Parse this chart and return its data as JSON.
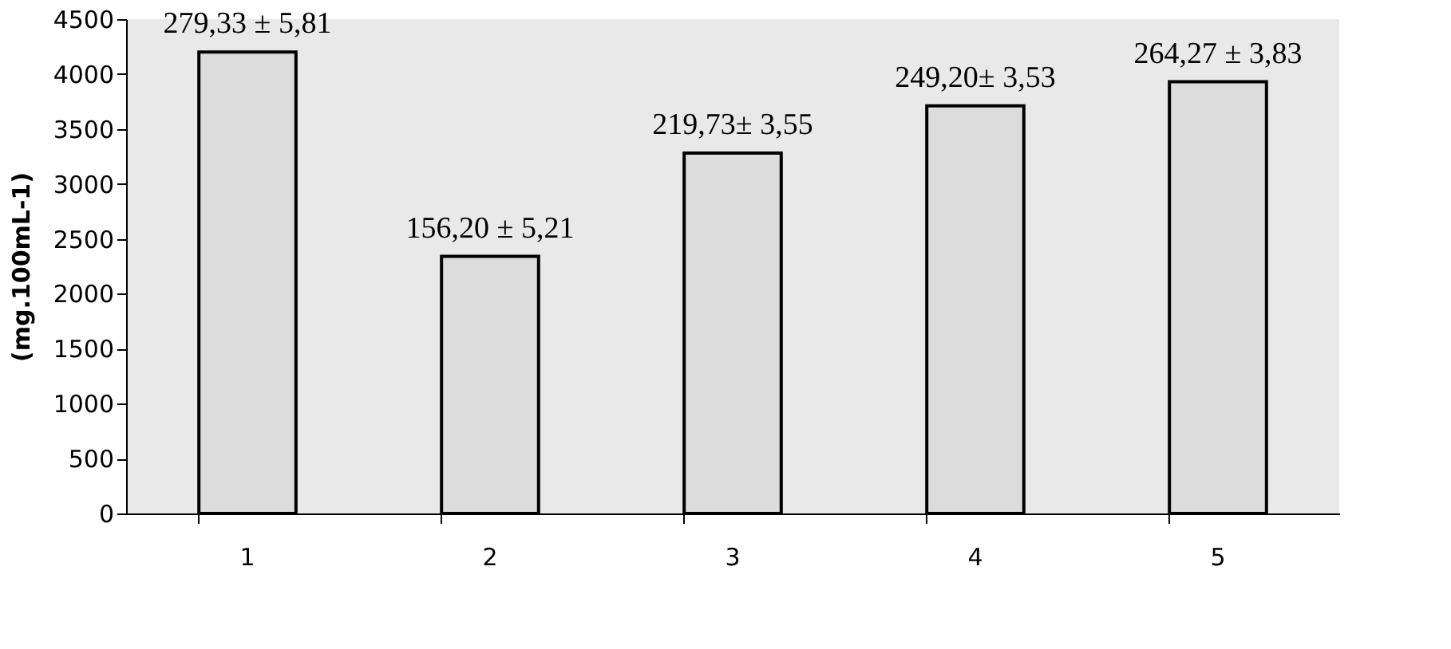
{
  "chart_data": {
    "type": "bar",
    "ylabel": "(mg.100mL-1)",
    "categories": [
      "1",
      "2",
      "3",
      "4",
      "5"
    ],
    "values": [
      4200,
      2340,
      3280,
      3710,
      3930
    ],
    "annotations": [
      {
        "text": "279,33 ± 5,81",
        "x": "1",
        "y": 4200
      },
      {
        "text": "156,20 ± 5,21",
        "x": "2",
        "y": 2340
      },
      {
        "text": "219,73± 3,55",
        "x": "3",
        "y": 3280
      },
      {
        "text": "249,20± 3,53",
        "x": "4",
        "y": 3710
      },
      {
        "text": "264,27 ± 3,83",
        "x": "5",
        "y": 3930
      }
    ],
    "color": "#dcdcdc",
    "ylim": [
      0,
      4500
    ],
    "yticks": [
      0,
      500,
      1000,
      1500,
      2000,
      2500,
      3000,
      3500,
      4000,
      4500
    ],
    "grid": false
  }
}
